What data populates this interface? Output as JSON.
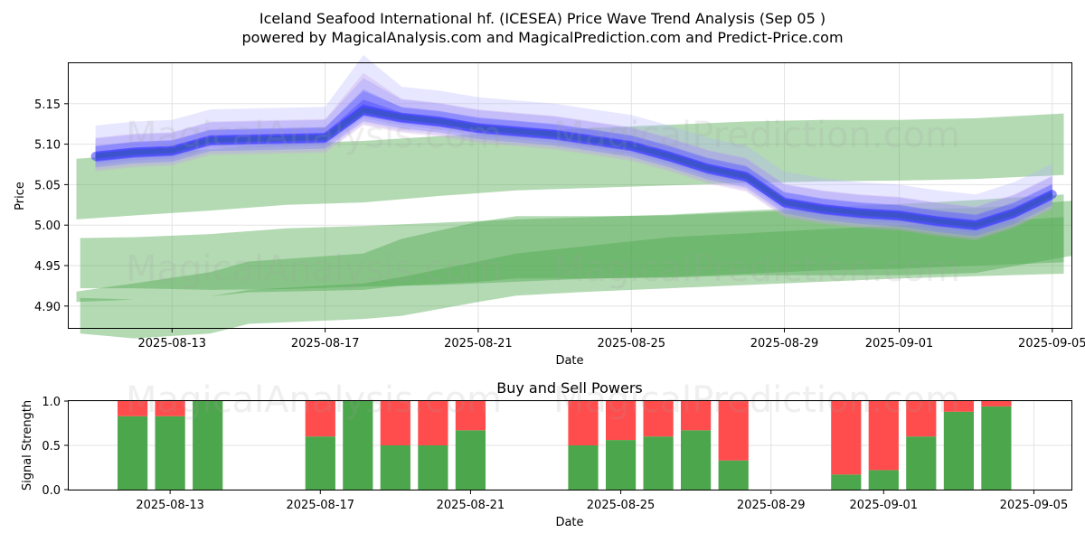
{
  "chart_data": [
    {
      "type": "area",
      "title": "Iceland Seafood International hf. (ICESEA) Price Wave Trend Analysis (Sep 05 )",
      "subtitle": "powered by MagicalAnalysis.com and MagicalPrediction.com and Predict-Price.com",
      "xlabel": "Date",
      "ylabel": "Price",
      "ylim": [
        4.873,
        5.2
      ],
      "yticks": [
        "4.90",
        "4.95",
        "5.00",
        "5.05",
        "5.10",
        "5.15"
      ],
      "yticks_values": [
        4.9,
        4.95,
        5.0,
        5.05,
        5.1,
        5.15
      ],
      "xticks": [
        "2025-08-13",
        "2025-08-17",
        "2025-08-21",
        "2025-08-25",
        "2025-08-29",
        "2025-09-01",
        "2025-09-05"
      ],
      "xticks_days": [
        2,
        6,
        10,
        14,
        18,
        21,
        25
      ],
      "xlim_days": [
        -0.7,
        25.5
      ],
      "grid": true,
      "watermarks": [
        "MagicalAnalysis.com",
        "MagicalPrediction.com"
      ],
      "green_bands": [
        {
          "x": [
            -0.5,
            1,
            3,
            5,
            7,
            9,
            11,
            13,
            15,
            17,
            19,
            21,
            23,
            25.3
          ],
          "upper": [
            5.082,
            5.087,
            5.094,
            5.101,
            5.104,
            5.11,
            5.115,
            5.12,
            5.124,
            5.128,
            5.13,
            5.13,
            5.132,
            5.138
          ],
          "lower": [
            5.007,
            5.012,
            5.018,
            5.025,
            5.028,
            5.036,
            5.043,
            5.046,
            5.049,
            5.052,
            5.054,
            5.055,
            5.057,
            5.062
          ]
        },
        {
          "x": [
            -0.4,
            1,
            3,
            5,
            7,
            9,
            11,
            13,
            15,
            17,
            19,
            21,
            23,
            25.3
          ],
          "upper": [
            4.984,
            4.985,
            4.989,
            4.996,
            4.999,
            5.003,
            5.007,
            5.01,
            5.013,
            5.018,
            5.022,
            5.026,
            5.031,
            5.038
          ],
          "lower": [
            4.922,
            4.922,
            4.92,
            4.921,
            4.924,
            4.926,
            4.93,
            4.934,
            4.936,
            4.94,
            4.944,
            4.946,
            4.95,
            4.954
          ]
        },
        {
          "x": [
            -0.5,
            1,
            3,
            4,
            7,
            8,
            10,
            11,
            13,
            15,
            17,
            19,
            21,
            23,
            25.5
          ],
          "upper": [
            4.918,
            4.928,
            4.942,
            4.955,
            4.965,
            4.983,
            5.004,
            5.011,
            5.011,
            5.012,
            5.016,
            5.019,
            5.02,
            5.021,
            5.03
          ],
          "lower": [
            4.905,
            4.908,
            4.912,
            4.917,
            4.92,
            4.925,
            4.93,
            4.934,
            4.934,
            4.935,
            4.938,
            4.938,
            4.938,
            4.941,
            4.962
          ]
        },
        {
          "x": [
            -0.4,
            1,
            3,
            4,
            7,
            8,
            10,
            11,
            13,
            15,
            17,
            19,
            21,
            23,
            25.3
          ],
          "upper": [
            4.91,
            4.908,
            4.912,
            4.92,
            4.928,
            4.936,
            4.955,
            4.965,
            4.975,
            4.985,
            4.99,
            4.995,
            5.0,
            5.003,
            5.01
          ],
          "lower": [
            4.866,
            4.86,
            4.866,
            4.878,
            4.884,
            4.888,
            4.905,
            4.913,
            4.918,
            4.922,
            4.926,
            4.93,
            4.934,
            4.937,
            4.94
          ]
        }
      ],
      "price_waves": {
        "x": [
          0,
          1,
          2,
          3,
          6,
          7,
          8,
          9,
          10,
          11,
          12,
          13,
          14,
          15,
          16,
          17,
          18,
          19,
          20,
          21,
          22,
          23,
          24,
          25
        ],
        "close": [
          5.085,
          5.09,
          5.092,
          5.105,
          5.108,
          5.142,
          5.133,
          5.128,
          5.12,
          5.116,
          5.112,
          5.105,
          5.098,
          5.085,
          5.07,
          5.06,
          5.028,
          5.02,
          5.015,
          5.012,
          5.005,
          5.0,
          5.015,
          5.038
        ],
        "spreads": [
          0.006,
          0.012,
          0.018,
          0.026,
          0.034
        ],
        "colors": [
          "#4040ff",
          "#5a5aff",
          "#7070ff",
          "#9090ff",
          "#b0b0ff",
          "#c8a0e0"
        ]
      }
    },
    {
      "type": "bar",
      "title": "Buy and Sell Powers",
      "xlabel": "Date",
      "ylabel": "Signal Strength",
      "ylim": [
        0,
        1.0
      ],
      "yticks": [
        "0.0",
        "0.5",
        "1.0"
      ],
      "yticks_values": [
        0.0,
        0.5,
        1.0
      ],
      "xticks": [
        "2025-08-13",
        "2025-08-17",
        "2025-08-21",
        "2025-08-25",
        "2025-08-29",
        "2025-09-01",
        "2025-09-05"
      ],
      "xticks_days": [
        2,
        6,
        10,
        14,
        18,
        21,
        25
      ],
      "xlim_days": [
        -0.7,
        26.0
      ],
      "buy_color": "#4ca64c",
      "sell_color": "#ff4c4c",
      "bar_days": [
        1,
        2,
        3,
        6,
        7,
        8,
        9,
        10,
        13,
        14,
        15,
        16,
        17,
        20,
        21,
        22,
        23,
        24
      ],
      "buy": [
        0.83,
        0.83,
        1.0,
        0.6,
        1.0,
        0.5,
        0.5,
        0.67,
        0.5,
        0.56,
        0.6,
        0.67,
        0.33,
        0.17,
        0.22,
        0.6,
        0.88,
        0.94
      ],
      "sell": [
        0.17,
        0.17,
        0.0,
        0.4,
        0.0,
        0.5,
        0.5,
        0.33,
        0.5,
        0.44,
        0.4,
        0.33,
        0.67,
        0.83,
        0.78,
        0.4,
        0.12,
        0.06
      ]
    }
  ]
}
